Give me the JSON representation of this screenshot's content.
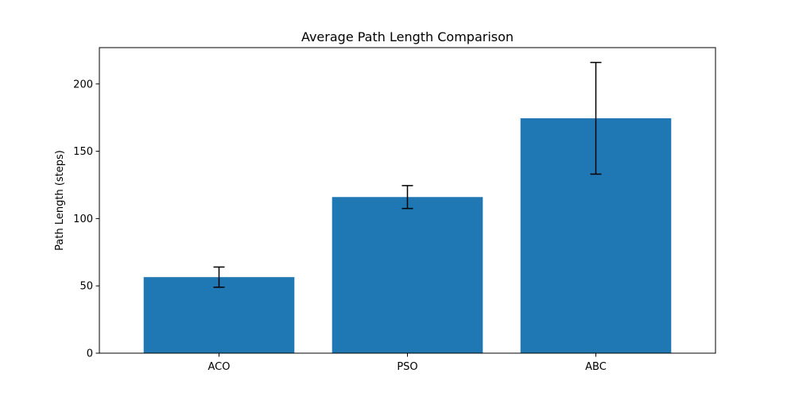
{
  "chart_data": {
    "type": "bar",
    "title": "Average Path Length Comparison",
    "xlabel": "",
    "ylabel": "Path Length (steps)",
    "categories": [
      "ACO",
      "PSO",
      "ABC"
    ],
    "values": [
      56.5,
      116.0,
      174.5
    ],
    "errors": [
      7.5,
      8.5,
      41.5
    ],
    "ylim": [
      0,
      227
    ],
    "yticks": [
      0,
      50,
      100,
      150,
      200
    ],
    "bar_color": "#1f77b4",
    "error_color": "#000000",
    "grid": false,
    "legend": false
  }
}
